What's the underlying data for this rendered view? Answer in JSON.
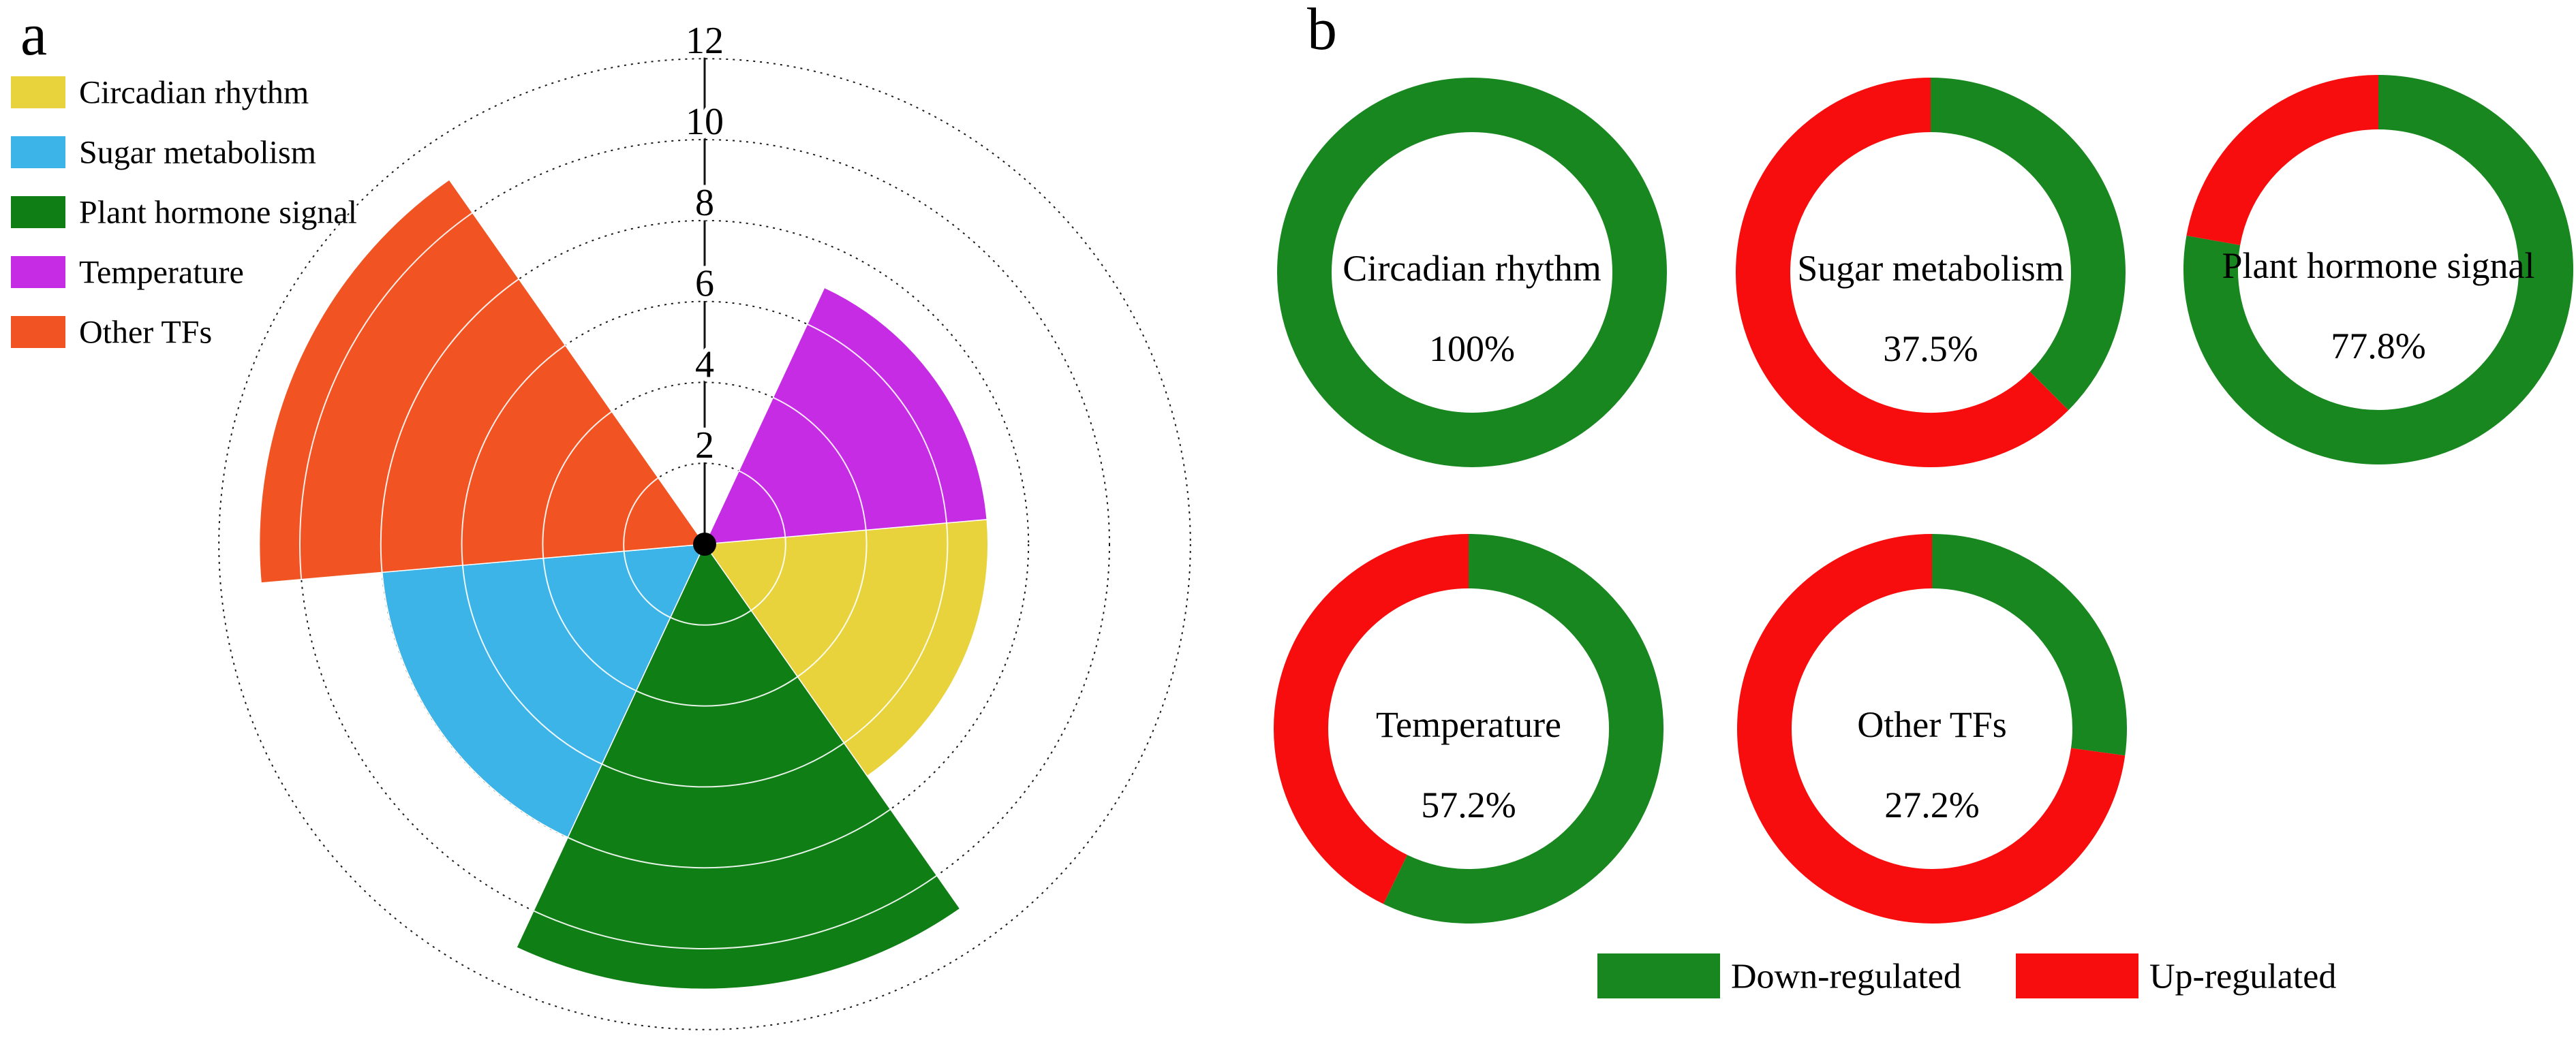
{
  "panel_labels": {
    "a": "a",
    "b": "b"
  },
  "chart_data": [
    {
      "type": "bar",
      "subtype": "polar-rose",
      "panel": "a",
      "title": "",
      "categories": [
        "Circadian rhythm",
        "Sugar metabolism",
        "Plant hormone signal",
        "Temperature",
        "Other TFs"
      ],
      "values": [
        7,
        8,
        11,
        7,
        11
      ],
      "colors": [
        "#e9d33c",
        "#3cb4e8",
        "#0f7e14",
        "#c52ce4",
        "#f15322"
      ],
      "sector_start_deg_from_north": [
        85,
        205,
        145,
        25,
        265
      ],
      "sector_span_deg": 60,
      "r_ticks": [
        2,
        4,
        6,
        8,
        10,
        12
      ],
      "r_max": 12,
      "grid": "dotted-circles",
      "legend_position": "upper-left"
    },
    {
      "type": "pie",
      "subtype": "donut-set",
      "panel": "b",
      "value_meaning": "green = Down-regulated share, red = Up-regulated share, arcs start at 12 o'clock clockwise",
      "donuts": [
        {
          "label": "Circadian rhythm",
          "down_pct": 100,
          "pct_text": "100%"
        },
        {
          "label": "Sugar metabolism",
          "down_pct": 37.5,
          "pct_text": "37.5%"
        },
        {
          "label": "Plant hormone signal",
          "down_pct": 77.8,
          "pct_text": "77.8%"
        },
        {
          "label": "Temperature",
          "down_pct": 57.2,
          "pct_text": "57.2%"
        },
        {
          "label": "Other TFs",
          "down_pct": 27.2,
          "pct_text": "27.2%"
        }
      ],
      "legend": [
        {
          "label": "Down-regulated",
          "color": "#18871f"
        },
        {
          "label": "Up-regulated",
          "color": "#f70d0d"
        }
      ],
      "colors": {
        "down": "#18871f",
        "up": "#f70d0d"
      }
    }
  ]
}
